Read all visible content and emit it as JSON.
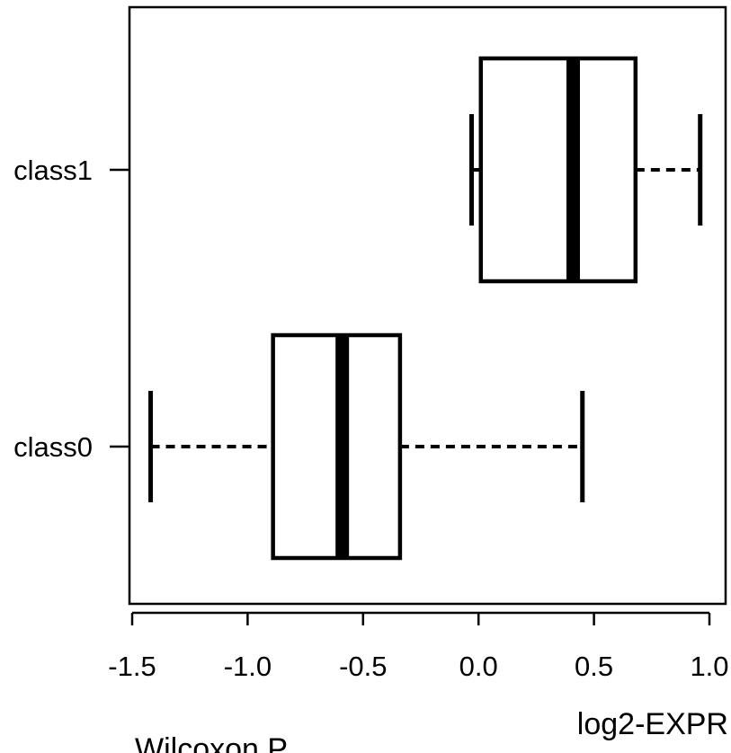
{
  "chart_data": {
    "type": "boxplot",
    "orientation": "horizontal",
    "xlabel": "log2-EXPR",
    "xlim": [
      -1.5,
      1.0
    ],
    "x_ticks": [
      -1.5,
      -1.0,
      -0.5,
      0.0,
      0.5,
      1.0
    ],
    "x_tick_labels": [
      "-1.5",
      "-1.0",
      "-0.5",
      "0.0",
      "0.5",
      "1.0"
    ],
    "grid": false,
    "categories": [
      "class0",
      "class1"
    ],
    "boxes": [
      {
        "category": "class0",
        "whisker_low": -1.42,
        "q1": -0.89,
        "median": -0.59,
        "q3": -0.34,
        "whisker_high": 0.45
      },
      {
        "category": "class1",
        "whisker_low": -0.03,
        "q1": 0.01,
        "median": 0.41,
        "q3": 0.68,
        "whisker_high": 0.96
      }
    ]
  },
  "footer_text": "Wilcoxon P"
}
